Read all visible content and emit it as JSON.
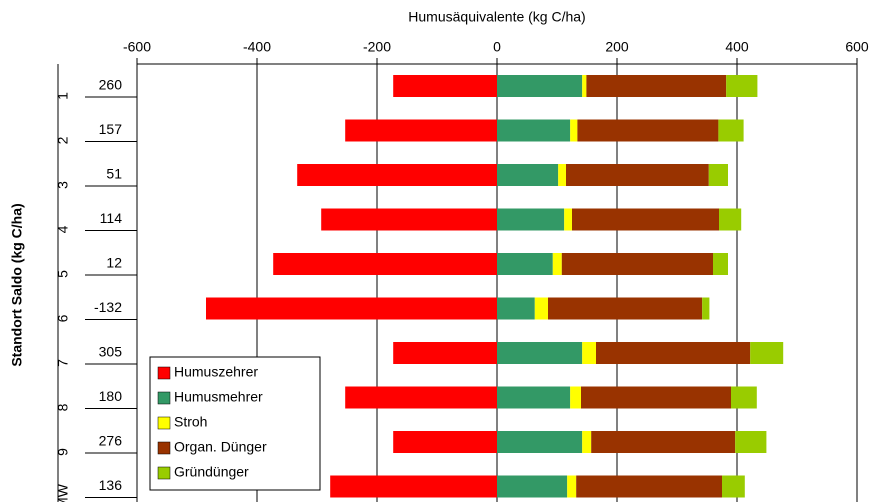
{
  "chart_data": {
    "type": "stacked_bar_horizontal",
    "xlabel": "Humusäquivalente (kg C/ha)",
    "ylabel": "Standort Saldo (kg C/ha)",
    "categories": [
      "1",
      "2",
      "3",
      "4",
      "5",
      "6",
      "7",
      "8",
      "9",
      "MW"
    ],
    "saldo": [
      260,
      157,
      51,
      114,
      12,
      -132,
      305,
      180,
      276,
      136
    ],
    "series": [
      {
        "name": "Humuszehrer",
        "color": "#ff0000",
        "values": [
          -173,
          -253,
          -333,
          -293,
          -373,
          -485,
          -173,
          -253,
          -173,
          -278
        ]
      },
      {
        "name": "Humusmehrer",
        "color": "#339966",
        "values": [
          142,
          122,
          102,
          112,
          93,
          63,
          142,
          122,
          142,
          117
        ]
      },
      {
        "name": "Stroh",
        "color": "#ffff00",
        "values": [
          7,
          12,
          13,
          13,
          15,
          22,
          23,
          18,
          15,
          15
        ]
      },
      {
        "name": "Organ. Dünger",
        "color": "#993300",
        "values": [
          233,
          235,
          238,
          245,
          252,
          257,
          257,
          250,
          240,
          243
        ]
      },
      {
        "name": "Gründünger",
        "color": "#99cc00",
        "values": [
          52,
          42,
          32,
          37,
          25,
          12,
          55,
          43,
          52,
          38
        ]
      }
    ],
    "xlim": [
      -600,
      600
    ],
    "xticks": [
      -600,
      -400,
      -200,
      0,
      200,
      400,
      600
    ],
    "grid": true,
    "legend": "lower left"
  }
}
